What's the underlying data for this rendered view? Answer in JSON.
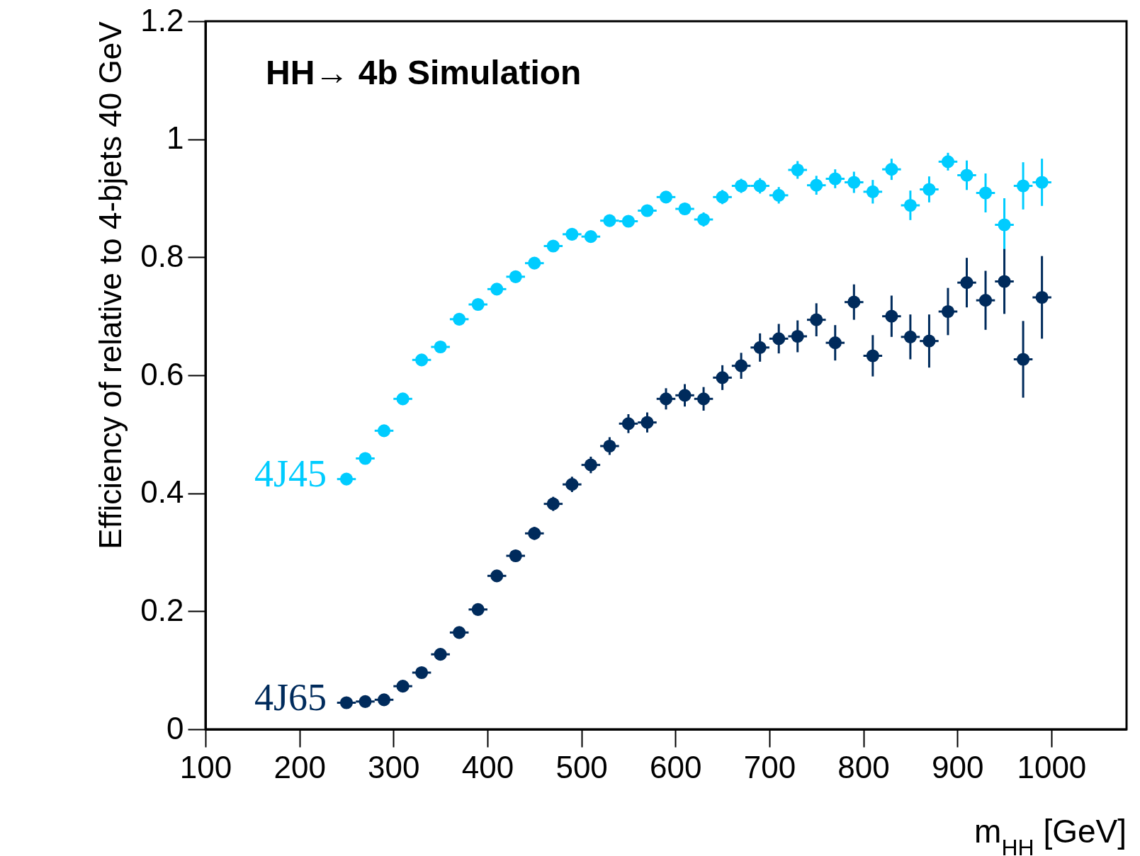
{
  "chart_data": {
    "type": "scatter",
    "xlabel": "m$_{HH}$ [GeV]",
    "ylabel": "Efficiency of relative to 4-bjets 40 GeV",
    "annotations": [
      "HH→ 4b Simulation"
    ],
    "xlim": [
      100,
      1080
    ],
    "xticks": [
      100,
      200,
      300,
      400,
      500,
      600,
      700,
      800,
      900,
      1000
    ],
    "ylim": [
      0,
      1.2
    ],
    "yticks": [
      0,
      0.2,
      0.4,
      0.6,
      0.8,
      1,
      1.2
    ],
    "marker": "circle",
    "grid": false,
    "x": [
      250,
      270,
      290,
      310,
      330,
      350,
      370,
      390,
      410,
      430,
      450,
      470,
      490,
      510,
      530,
      550,
      570,
      590,
      610,
      630,
      650,
      670,
      690,
      710,
      730,
      750,
      770,
      790,
      810,
      830,
      850,
      870,
      890,
      910,
      930,
      950,
      970,
      990
    ],
    "series": [
      {
        "name": "4J45",
        "color": "#00ccff",
        "values": [
          0.424,
          0.459,
          0.506,
          0.56,
          0.626,
          0.648,
          0.695,
          0.72,
          0.746,
          0.767,
          0.79,
          0.819,
          0.839,
          0.835,
          0.862,
          0.861,
          0.879,
          0.902,
          0.882,
          0.864,
          0.902,
          0.921,
          0.921,
          0.905,
          0.948,
          0.922,
          0.933,
          0.927,
          0.911,
          0.949,
          0.888,
          0.915,
          0.962,
          0.939,
          0.909,
          0.855,
          0.921,
          0.927
        ],
        "errors": [
          0.006,
          0.006,
          0.006,
          0.006,
          0.006,
          0.006,
          0.006,
          0.006,
          0.006,
          0.006,
          0.006,
          0.006,
          0.006,
          0.007,
          0.008,
          0.008,
          0.009,
          0.01,
          0.01,
          0.012,
          0.012,
          0.012,
          0.013,
          0.014,
          0.015,
          0.016,
          0.016,
          0.018,
          0.02,
          0.018,
          0.025,
          0.022,
          0.015,
          0.025,
          0.033,
          0.045,
          0.04,
          0.04
        ],
        "xerrors": [
          10,
          10,
          10,
          10,
          10,
          10,
          10,
          10,
          10,
          10,
          10,
          10,
          10,
          10,
          10,
          10,
          10,
          10,
          10,
          10,
          10,
          10,
          10,
          10,
          10,
          10,
          10,
          10,
          10,
          10,
          10,
          10,
          10,
          10,
          10,
          10,
          10,
          10
        ]
      },
      {
        "name": "4J65",
        "color": "#002b5c",
        "values": [
          0.045,
          0.047,
          0.05,
          0.073,
          0.096,
          0.127,
          0.164,
          0.203,
          0.26,
          0.294,
          0.332,
          0.382,
          0.415,
          0.448,
          0.48,
          0.518,
          0.52,
          0.56,
          0.566,
          0.56,
          0.596,
          0.616,
          0.647,
          0.662,
          0.666,
          0.694,
          0.655,
          0.724,
          0.633,
          0.7,
          0.665,
          0.658,
          0.708,
          0.757,
          0.727,
          0.759,
          0.627,
          0.732
        ],
        "errors": [
          0.005,
          0.005,
          0.005,
          0.006,
          0.006,
          0.007,
          0.008,
          0.008,
          0.009,
          0.01,
          0.011,
          0.012,
          0.013,
          0.014,
          0.015,
          0.016,
          0.017,
          0.018,
          0.019,
          0.02,
          0.021,
          0.022,
          0.024,
          0.025,
          0.027,
          0.028,
          0.03,
          0.03,
          0.035,
          0.035,
          0.038,
          0.045,
          0.04,
          0.042,
          0.05,
          0.055,
          0.065,
          0.07
        ],
        "xerrors": [
          10,
          10,
          10,
          10,
          10,
          10,
          10,
          10,
          10,
          10,
          10,
          10,
          10,
          10,
          10,
          10,
          10,
          10,
          10,
          10,
          10,
          10,
          10,
          10,
          10,
          10,
          10,
          10,
          10,
          10,
          10,
          10,
          10,
          10,
          10,
          10,
          10,
          10
        ]
      }
    ]
  }
}
